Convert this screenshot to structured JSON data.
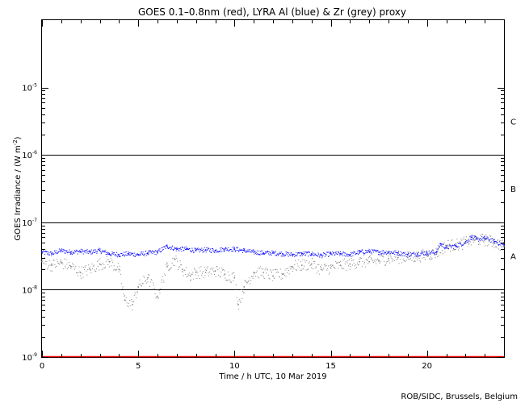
{
  "chart_data": {
    "type": "scatter",
    "title": "GOES 0.1–0.8nm (red), LYRA Al (blue) & Zr (grey) proxy",
    "xlabel": "Time / h UTC, 10 Mar 2019",
    "ylabel_text": "GOES Irradiance / (W m",
    "ylabel_sup": "-2",
    "ylabel_close": ")",
    "xlim": [
      0,
      24
    ],
    "ylim": [
      1e-09,
      0.0001
    ],
    "yscale": "log",
    "xticks": [
      0,
      5,
      10,
      15,
      20
    ],
    "yticks": [
      {
        "value": 1e-09,
        "base": "10",
        "exp": "-9"
      },
      {
        "value": 1e-08,
        "base": "10",
        "exp": "-8"
      },
      {
        "value": 1e-07,
        "base": "10",
        "exp": "-7"
      },
      {
        "value": 1e-06,
        "base": "10",
        "exp": "-6"
      },
      {
        "value": 1e-05,
        "base": "10",
        "exp": "-5"
      }
    ],
    "flare_levels": [
      {
        "value": 1e-08
      },
      {
        "value": 1e-07
      },
      {
        "value": 1e-06
      }
    ],
    "flare_classes": [
      {
        "label": "A",
        "value": 3.16e-08
      },
      {
        "label": "B",
        "value": 3.16e-07
      },
      {
        "label": "C",
        "value": 3.16e-06
      }
    ],
    "series": [
      {
        "name": "GOES 0.1–0.8nm",
        "color": "#ff0000",
        "x": [
          0,
          24
        ],
        "y": [
          1e-09,
          1e-09
        ]
      },
      {
        "name": "LYRA Al",
        "color": "#0000ff",
        "x": [
          0,
          0.5,
          1,
          1.5,
          2,
          2.5,
          3,
          3.5,
          4,
          4.5,
          5,
          5.5,
          6,
          6.5,
          7,
          7.5,
          8,
          8.5,
          9,
          9.5,
          10,
          10.5,
          11,
          11.5,
          12,
          12.5,
          13,
          13.5,
          14,
          14.5,
          15,
          15.5,
          16,
          16.5,
          17,
          17.5,
          18,
          18.5,
          19,
          19.5,
          20,
          20.5,
          20.7,
          21,
          21.5,
          22,
          22.3,
          22.6,
          23,
          23.5,
          24
        ],
        "y": [
          3.6e-08,
          3.4e-08,
          3.8e-08,
          3.6e-08,
          3.7e-08,
          3.6e-08,
          3.8e-08,
          3.4e-08,
          3.3e-08,
          3.4e-08,
          3.3e-08,
          3.5e-08,
          3.6e-08,
          4.4e-08,
          4e-08,
          4e-08,
          3.8e-08,
          3.9e-08,
          3.8e-08,
          4e-08,
          4e-08,
          3.8e-08,
          3.6e-08,
          3.5e-08,
          3.5e-08,
          3.4e-08,
          3.3e-08,
          3.4e-08,
          3.4e-08,
          3.2e-08,
          3.4e-08,
          3.4e-08,
          3.3e-08,
          3.6e-08,
          3.7e-08,
          3.6e-08,
          3.6e-08,
          3.5e-08,
          3.3e-08,
          3.4e-08,
          3.5e-08,
          3.6e-08,
          4.8e-08,
          4.2e-08,
          4.5e-08,
          5e-08,
          6e-08,
          5.6e-08,
          5.8e-08,
          5.2e-08,
          4.6e-08
        ]
      },
      {
        "name": "Zr proxy",
        "color": "#808080",
        "x": [
          0,
          0.5,
          1,
          1.5,
          2,
          2.5,
          3,
          3.5,
          4,
          4.3,
          4.7,
          5,
          5.5,
          6,
          6.5,
          6.9,
          7.3,
          7.7,
          8,
          8.5,
          9,
          9.5,
          10,
          10.2,
          10.5,
          11,
          11.5,
          12,
          12.5,
          13,
          13.5,
          14,
          14.5,
          15,
          15.5,
          16,
          16.5,
          17,
          17.5,
          18,
          18.5,
          19,
          19.5,
          20,
          20.5,
          21,
          21.5,
          22,
          22.5,
          23,
          23.5,
          24
        ],
        "y": [
          2.6e-08,
          2.3e-08,
          2.5e-08,
          2.2e-08,
          1.8e-08,
          2e-08,
          2.4e-08,
          2.6e-08,
          2e-08,
          7e-09,
          6e-09,
          1.1e-08,
          1.5e-08,
          8e-09,
          2.2e-08,
          2.8e-08,
          2e-08,
          1.6e-08,
          1.8e-08,
          1.8e-08,
          1.9e-08,
          1.7e-08,
          1.5e-08,
          6e-09,
          1.1e-08,
          1.8e-08,
          1.8e-08,
          1.6e-08,
          1.7e-08,
          2.2e-08,
          2.3e-08,
          2.4e-08,
          2e-08,
          2.1e-08,
          2.3e-08,
          2.4e-08,
          2.6e-08,
          2.6e-08,
          2.7e-08,
          2.9e-08,
          3e-08,
          3e-08,
          3.1e-08,
          3.3e-08,
          3.5e-08,
          4.5e-08,
          4.6e-08,
          5e-08,
          5.5e-08,
          5.5e-08,
          5e-08,
          4.4e-08
        ]
      }
    ]
  },
  "footer": {
    "credit": "ROB/SIDC, Brussels, Belgium"
  }
}
